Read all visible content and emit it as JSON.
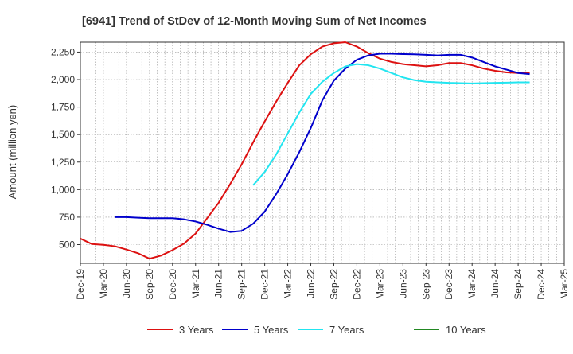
{
  "chart_data": {
    "type": "line",
    "title": "[6941]  Trend of StDev of 12-Month Moving Sum of Net Incomes",
    "ylabel": "Amount (million yen)",
    "xlabel": "",
    "x_ticks": [
      "Dec-19",
      "Mar-20",
      "Jun-20",
      "Sep-20",
      "Dec-20",
      "Mar-21",
      "Jun-21",
      "Sep-21",
      "Dec-21",
      "Mar-22",
      "Jun-22",
      "Sep-22",
      "Dec-22",
      "Mar-23",
      "Jun-23",
      "Sep-23",
      "Dec-23",
      "Mar-24",
      "Jun-24",
      "Sep-24",
      "Dec-24",
      "Mar-25"
    ],
    "y_ticks": [
      500,
      750,
      1000,
      1250,
      1500,
      1750,
      2000,
      2250
    ],
    "y_tick_labels": [
      "500",
      "750",
      "1,000",
      "1,250",
      "1,500",
      "1,750",
      "2,000",
      "2,250"
    ],
    "ylim": [
      330,
      2340
    ],
    "grid": true,
    "legend_position": "bottom",
    "series": [
      {
        "name": "3 Years",
        "color": "#dd1111",
        "points": [
          [
            0,
            555
          ],
          [
            1,
            505
          ],
          [
            2,
            498
          ],
          [
            3,
            485
          ],
          [
            4,
            455
          ],
          [
            5,
            422
          ],
          [
            6,
            372
          ],
          [
            7,
            400
          ],
          [
            8,
            450
          ],
          [
            9,
            510
          ],
          [
            10,
            600
          ],
          [
            11,
            740
          ],
          [
            12,
            880
          ],
          [
            13,
            1050
          ],
          [
            14,
            1230
          ],
          [
            15,
            1430
          ],
          [
            16,
            1620
          ],
          [
            17,
            1800
          ],
          [
            18,
            1970
          ],
          [
            19,
            2130
          ],
          [
            20,
            2230
          ],
          [
            21,
            2300
          ],
          [
            22,
            2330
          ],
          [
            23,
            2340
          ],
          [
            24,
            2300
          ],
          [
            25,
            2240
          ],
          [
            26,
            2190
          ],
          [
            27,
            2160
          ],
          [
            28,
            2140
          ],
          [
            29,
            2130
          ],
          [
            30,
            2120
          ],
          [
            31,
            2130
          ],
          [
            32,
            2150
          ],
          [
            33,
            2150
          ],
          [
            34,
            2130
          ],
          [
            35,
            2100
          ],
          [
            36,
            2080
          ],
          [
            37,
            2065
          ],
          [
            38,
            2060
          ],
          [
            39,
            2060
          ]
        ]
      },
      {
        "name": "5 Years",
        "color": "#0000cc",
        "points": [
          [
            3,
            750
          ],
          [
            4,
            750
          ],
          [
            5,
            745
          ],
          [
            6,
            740
          ],
          [
            7,
            740
          ],
          [
            8,
            740
          ],
          [
            9,
            730
          ],
          [
            10,
            710
          ],
          [
            11,
            680
          ],
          [
            12,
            645
          ],
          [
            13,
            615
          ],
          [
            14,
            625
          ],
          [
            15,
            690
          ],
          [
            16,
            800
          ],
          [
            17,
            960
          ],
          [
            18,
            1140
          ],
          [
            19,
            1340
          ],
          [
            20,
            1560
          ],
          [
            21,
            1810
          ],
          [
            22,
            1990
          ],
          [
            23,
            2100
          ],
          [
            24,
            2180
          ],
          [
            25,
            2220
          ],
          [
            26,
            2235
          ],
          [
            27,
            2235
          ],
          [
            28,
            2232
          ],
          [
            29,
            2230
          ],
          [
            30,
            2225
          ],
          [
            31,
            2220
          ],
          [
            32,
            2225
          ],
          [
            33,
            2225
          ],
          [
            34,
            2200
          ],
          [
            35,
            2160
          ],
          [
            36,
            2120
          ],
          [
            37,
            2090
          ],
          [
            38,
            2060
          ],
          [
            39,
            2050
          ]
        ]
      },
      {
        "name": "7 Years",
        "color": "#22e5f0",
        "points": [
          [
            15,
            1040
          ],
          [
            16,
            1160
          ],
          [
            17,
            1320
          ],
          [
            18,
            1510
          ],
          [
            19,
            1700
          ],
          [
            20,
            1870
          ],
          [
            21,
            1980
          ],
          [
            22,
            2060
          ],
          [
            23,
            2120
          ],
          [
            24,
            2140
          ],
          [
            25,
            2130
          ],
          [
            26,
            2100
          ],
          [
            27,
            2060
          ],
          [
            28,
            2020
          ],
          [
            29,
            1995
          ],
          [
            30,
            1980
          ],
          [
            31,
            1975
          ],
          [
            32,
            1970
          ],
          [
            33,
            1968
          ],
          [
            34,
            1965
          ],
          [
            35,
            1968
          ],
          [
            36,
            1970
          ],
          [
            37,
            1972
          ],
          [
            38,
            1975
          ],
          [
            39,
            1975
          ]
        ]
      },
      {
        "name": "10 Years",
        "color": "#228822",
        "points": []
      }
    ]
  },
  "legend": {
    "items": [
      {
        "label": "3 Years",
        "color": "#dd1111"
      },
      {
        "label": "5 Years",
        "color": "#0000cc"
      },
      {
        "label": "7 Years",
        "color": "#22e5f0"
      },
      {
        "label": "10 Years",
        "color": "#228822"
      }
    ]
  }
}
